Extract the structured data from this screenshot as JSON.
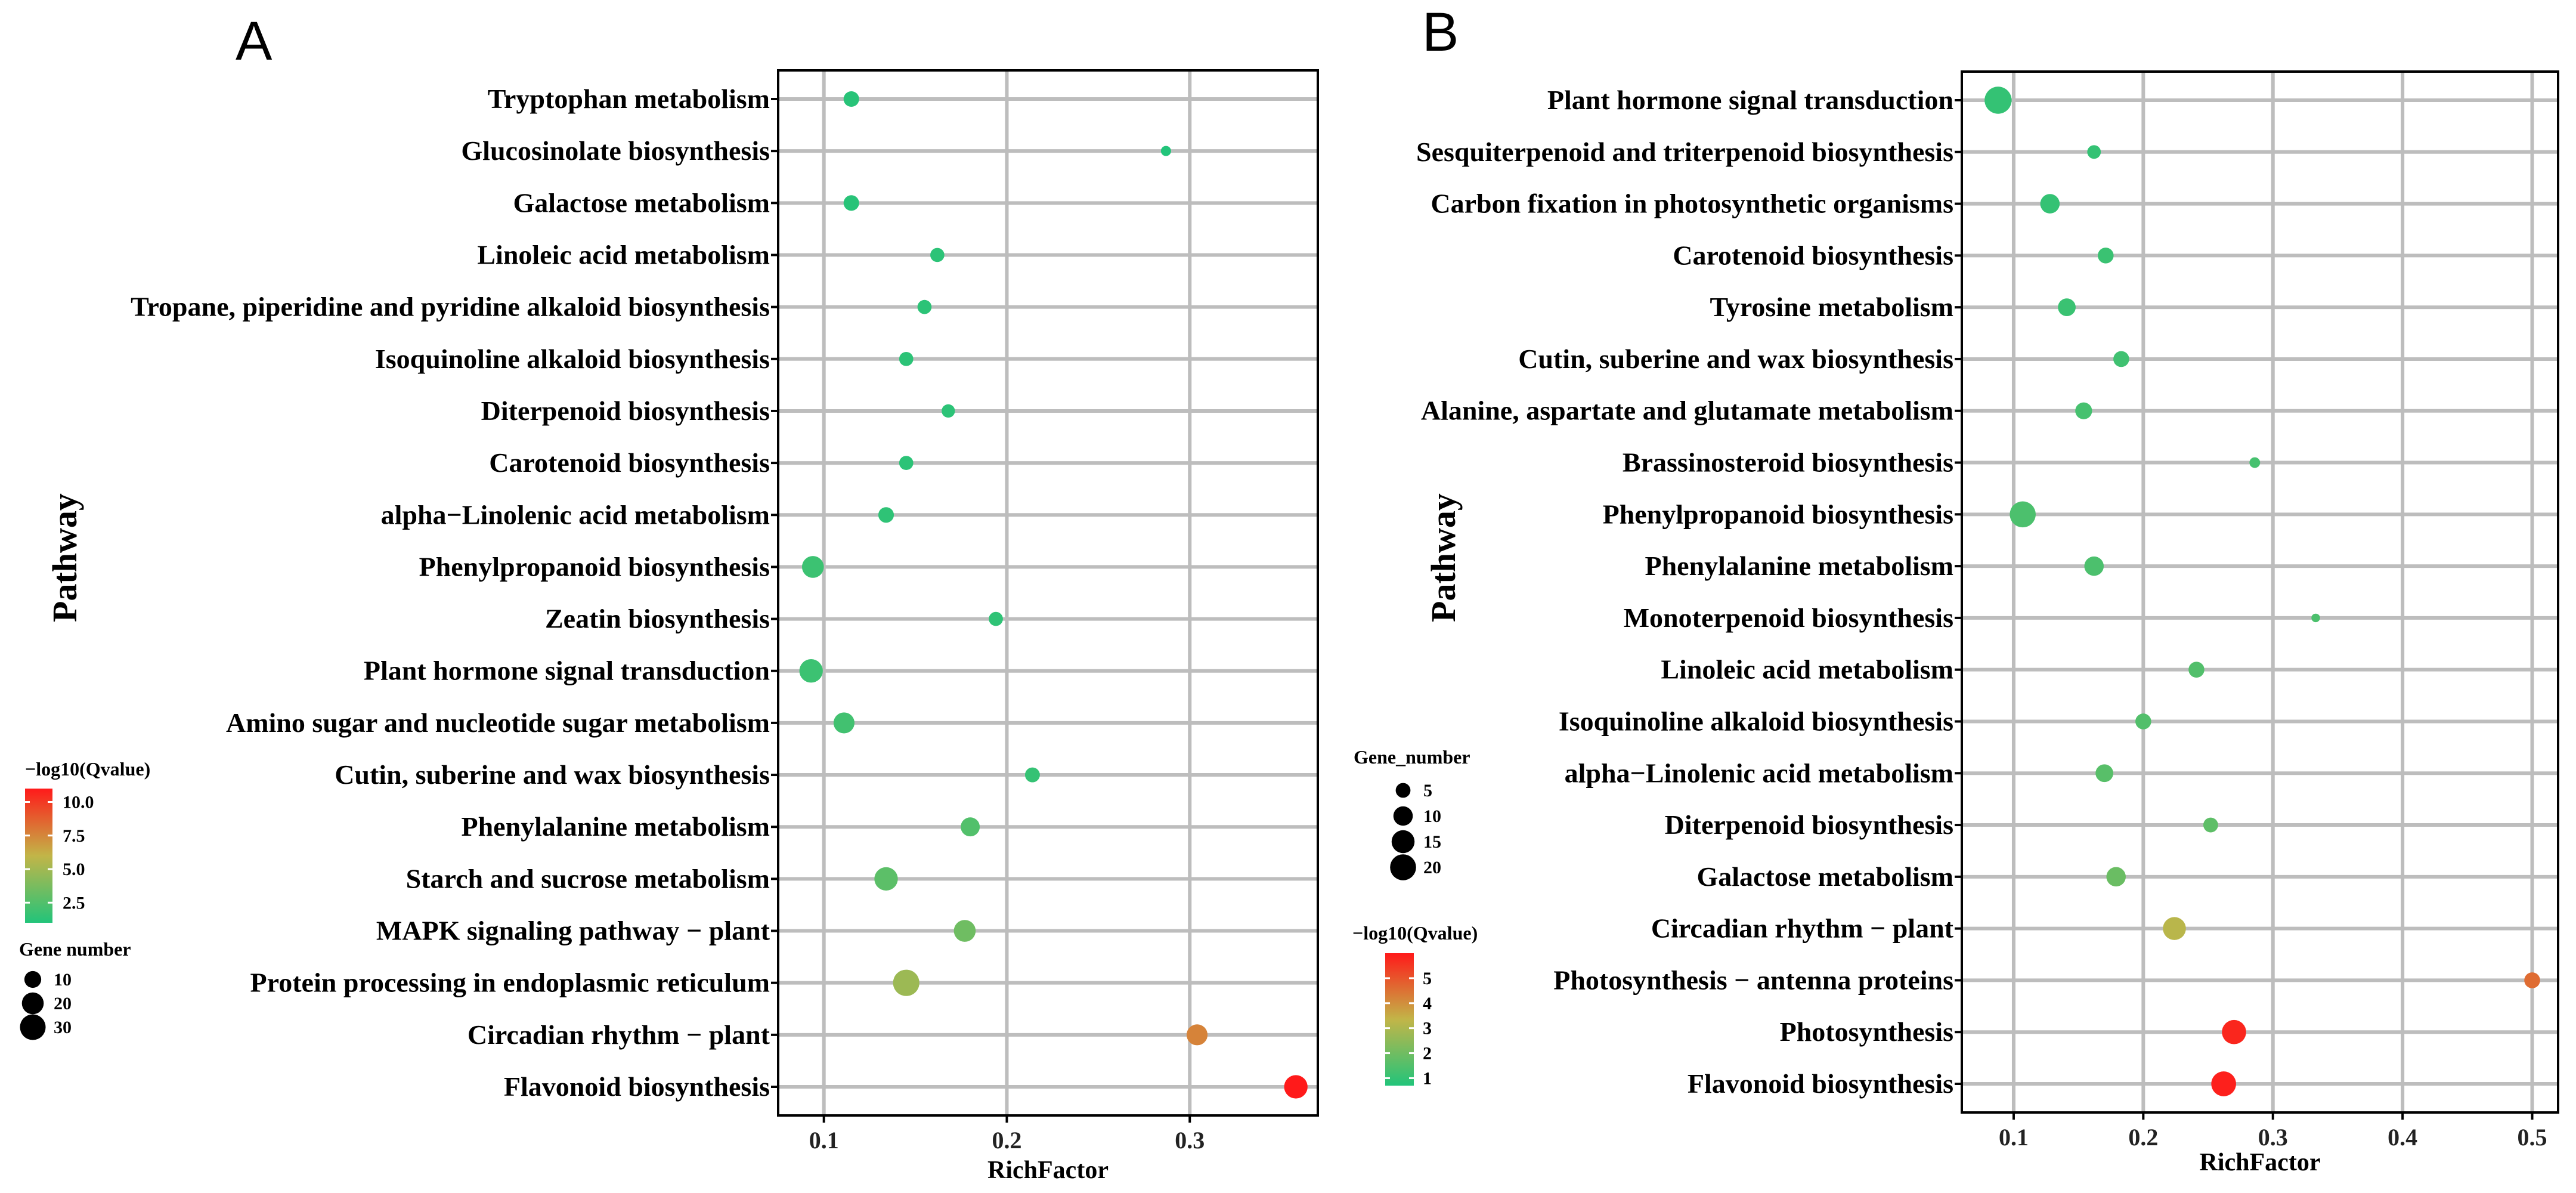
{
  "figure": {
    "panel_a_label": "A",
    "panel_b_label": "B"
  },
  "chart_data": [
    {
      "type": "scatter",
      "title": "",
      "xlabel": "RichFactor",
      "ylabel": "Pathway",
      "xlim": [
        0.075,
        0.37
      ],
      "xticks": [
        0.1,
        0.2,
        0.3
      ],
      "xtick_labels": [
        "0.1",
        "0.2",
        "0.3"
      ],
      "color_legend": {
        "title": "−log10(Qvalue)",
        "ticks": [
          2.5,
          5.0,
          7.5,
          10.0
        ],
        "tick_labels": [
          "2.5",
          "5.0",
          "7.5",
          "10.0"
        ],
        "range": [
          1.0,
          11.0
        ],
        "low_color": "#22c47a",
        "mid_color": "#c2b548",
        "high_color": "#ff1a1a"
      },
      "size_legend": {
        "title": "Gene number",
        "values": [
          10,
          20,
          30
        ],
        "labels": [
          "10",
          "20",
          "30"
        ]
      },
      "points": [
        {
          "pathway": "Tryptophan metabolism",
          "rich_factor": 0.115,
          "gene_number": 8,
          "qvalue": 1.2
        },
        {
          "pathway": "Glucosinolate biosynthesis",
          "rich_factor": 0.287,
          "gene_number": 2,
          "qvalue": 1.0
        },
        {
          "pathway": "Galactose metabolism",
          "rich_factor": 0.115,
          "gene_number": 8,
          "qvalue": 1.2
        },
        {
          "pathway": "Linoleic acid metabolism",
          "rich_factor": 0.162,
          "gene_number": 6,
          "qvalue": 1.3
        },
        {
          "pathway": "Tropane, piperidine and pyridine alkaloid biosynthesis",
          "rich_factor": 0.155,
          "gene_number": 6,
          "qvalue": 1.3
        },
        {
          "pathway": "Isoquinoline alkaloid biosynthesis",
          "rich_factor": 0.145,
          "gene_number": 6,
          "qvalue": 1.3
        },
        {
          "pathway": "Diterpenoid biosynthesis",
          "rich_factor": 0.168,
          "gene_number": 5,
          "qvalue": 1.3
        },
        {
          "pathway": "Carotenoid biosynthesis",
          "rich_factor": 0.145,
          "gene_number": 6,
          "qvalue": 1.3
        },
        {
          "pathway": "alpha−Linolenic acid metabolism",
          "rich_factor": 0.134,
          "gene_number": 8,
          "qvalue": 1.4
        },
        {
          "pathway": "Phenylpropanoid biosynthesis",
          "rich_factor": 0.094,
          "gene_number": 20,
          "qvalue": 1.8
        },
        {
          "pathway": "Zeatin biosynthesis",
          "rich_factor": 0.194,
          "gene_number": 6,
          "qvalue": 1.4
        },
        {
          "pathway": "Plant hormone signal transduction",
          "rich_factor": 0.093,
          "gene_number": 24,
          "qvalue": 1.8
        },
        {
          "pathway": "Amino sugar and nucleotide sugar metabolism",
          "rich_factor": 0.111,
          "gene_number": 18,
          "qvalue": 2.0
        },
        {
          "pathway": "Cutin, suberine and wax biosynthesis",
          "rich_factor": 0.214,
          "gene_number": 7,
          "qvalue": 1.6
        },
        {
          "pathway": "Phenylalanine metabolism",
          "rich_factor": 0.18,
          "gene_number": 14,
          "qvalue": 2.5
        },
        {
          "pathway": "Starch and sucrose metabolism",
          "rich_factor": 0.134,
          "gene_number": 24,
          "qvalue": 2.8
        },
        {
          "pathway": "MAPK signaling pathway − plant",
          "rich_factor": 0.177,
          "gene_number": 20,
          "qvalue": 3.4
        },
        {
          "pathway": "Protein processing in endoplasmic reticulum",
          "rich_factor": 0.145,
          "gene_number": 32,
          "qvalue": 4.8
        },
        {
          "pathway": "Circadian rhythm − plant",
          "rich_factor": 0.304,
          "gene_number": 18,
          "qvalue": 7.6
        },
        {
          "pathway": "Flavonoid biosynthesis",
          "rich_factor": 0.358,
          "gene_number": 24,
          "qvalue": 11.0
        }
      ]
    },
    {
      "type": "scatter",
      "title": "",
      "xlabel": "RichFactor",
      "ylabel": "Pathway",
      "xlim": [
        0.06,
        0.52
      ],
      "xticks": [
        0.1,
        0.2,
        0.3,
        0.4,
        0.5
      ],
      "xtick_labels": [
        "0.1",
        "0.2",
        "0.3",
        "0.4",
        "0.5"
      ],
      "size_legend": {
        "title": "Gene_number",
        "values": [
          5,
          10,
          15,
          20
        ],
        "labels": [
          "5",
          "10",
          "15",
          "20"
        ]
      },
      "color_legend": {
        "title": "−log10(Qvalue)",
        "ticks": [
          1,
          2,
          3,
          4,
          5
        ],
        "tick_labels": [
          "1",
          "2",
          "3",
          "4",
          "5"
        ],
        "range": [
          0.7,
          6.0
        ],
        "low_color": "#22c47a",
        "mid_color": "#c2b548",
        "high_color": "#ff1a1a"
      },
      "points": [
        {
          "pathway": "Plant hormone signal transduction",
          "rich_factor": 0.088,
          "gene_number": 22,
          "qvalue": 1.0
        },
        {
          "pathway": "Sesquiterpenoid and triterpenoid biosynthesis",
          "rich_factor": 0.162,
          "gene_number": 4,
          "qvalue": 1.0
        },
        {
          "pathway": "Carbon fixation in photosynthetic organisms",
          "rich_factor": 0.128,
          "gene_number": 10,
          "qvalue": 1.0
        },
        {
          "pathway": "Carotenoid biosynthesis",
          "rich_factor": 0.171,
          "gene_number": 6,
          "qvalue": 1.1
        },
        {
          "pathway": "Tyrosine metabolism",
          "rich_factor": 0.141,
          "gene_number": 8,
          "qvalue": 1.1
        },
        {
          "pathway": "Cutin, suberine and wax biosynthesis",
          "rich_factor": 0.183,
          "gene_number": 6,
          "qvalue": 1.2
        },
        {
          "pathway": "Alanine, aspartate and glutamate metabolism",
          "rich_factor": 0.154,
          "gene_number": 7,
          "qvalue": 1.3
        },
        {
          "pathway": "Brassinosteroid biosynthesis",
          "rich_factor": 0.286,
          "gene_number": 2,
          "qvalue": 1.3
        },
        {
          "pathway": "Phenylpropanoid biosynthesis",
          "rich_factor": 0.107,
          "gene_number": 20,
          "qvalue": 1.4
        },
        {
          "pathway": "Phenylalanine metabolism",
          "rich_factor": 0.162,
          "gene_number": 10,
          "qvalue": 1.4
        },
        {
          "pathway": "Monoterpenoid biosynthesis",
          "rich_factor": 0.333,
          "gene_number": 1,
          "qvalue": 1.4
        },
        {
          "pathway": "Linoleic acid metabolism",
          "rich_factor": 0.241,
          "gene_number": 6,
          "qvalue": 1.5
        },
        {
          "pathway": "Isoquinoline alkaloid biosynthesis",
          "rich_factor": 0.2,
          "gene_number": 6,
          "qvalue": 1.5
        },
        {
          "pathway": "alpha−Linolenic acid metabolism",
          "rich_factor": 0.17,
          "gene_number": 8,
          "qvalue": 1.6
        },
        {
          "pathway": "Diterpenoid biosynthesis",
          "rich_factor": 0.252,
          "gene_number": 5,
          "qvalue": 1.7
        },
        {
          "pathway": "Galactose metabolism",
          "rich_factor": 0.179,
          "gene_number": 10,
          "qvalue": 1.9
        },
        {
          "pathway": "Circadian rhythm − plant",
          "rich_factor": 0.224,
          "gene_number": 15,
          "qvalue": 3.2
        },
        {
          "pathway": "Photosynthesis − antenna proteins",
          "rich_factor": 0.5,
          "gene_number": 6,
          "qvalue": 4.6
        },
        {
          "pathway": "Photosynthesis",
          "rich_factor": 0.27,
          "gene_number": 17,
          "qvalue": 5.8
        },
        {
          "pathway": "Flavonoid biosynthesis",
          "rich_factor": 0.262,
          "gene_number": 18,
          "qvalue": 5.9
        }
      ]
    }
  ]
}
